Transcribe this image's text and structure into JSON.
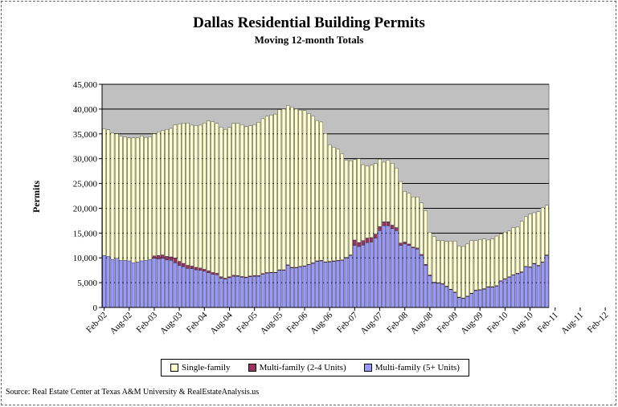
{
  "chart_data": {
    "type": "bar",
    "stacked": true,
    "title": "Dallas Residential Building Permits",
    "subtitle": "Moving 12-month Totals",
    "ylabel": "Permits",
    "xlabel": "",
    "ylim": [
      0,
      45000
    ],
    "y_ticks": [
      "0",
      "5,000",
      "10,000",
      "15,000",
      "20,000",
      "25,000",
      "30,000",
      "35,000",
      "40,000",
      "45,000"
    ],
    "x_tick_labels": [
      "Feb-02",
      "Aug-02",
      "Feb-03",
      "Aug-03",
      "Feb-04",
      "Aug-04",
      "Feb-05",
      "Aug-05",
      "Feb-06",
      "Aug-06",
      "Feb-07",
      "Aug-07",
      "Feb-08",
      "Aug-08",
      "Feb-09",
      "Aug-09",
      "Feb-10",
      "Aug-10",
      "Feb-11",
      "Aug-11",
      "Feb-12"
    ],
    "legend_placement": "bottom",
    "grid": true,
    "colors": {
      "single_family": "#FFFFCC",
      "multi_2_4": "#993366",
      "multi_5plus": "#9999FF",
      "plot_background": "#C0C0C0"
    },
    "start_period": "Feb-02",
    "series": [
      {
        "name": "Multi-family (5+ Units)",
        "values": [
          10500,
          10300,
          9700,
          9900,
          9500,
          9500,
          9400,
          9000,
          9200,
          9400,
          9500,
          9700,
          9900,
          9800,
          9900,
          9600,
          9500,
          9000,
          8500,
          8200,
          7900,
          7800,
          7600,
          7500,
          7300,
          7000,
          6700,
          6600,
          5900,
          5700,
          6000,
          6300,
          6300,
          6100,
          6000,
          6200,
          6300,
          6300,
          6700,
          6900,
          7000,
          7000,
          7500,
          7500,
          8500,
          8000,
          8000,
          8200,
          8300,
          8600,
          8900,
          9300,
          9400,
          9100,
          9200,
          9300,
          9400,
          9500,
          10000,
          10500,
          12500,
          12300,
          12600,
          13100,
          13200,
          14000,
          15500,
          16500,
          16500,
          15900,
          15500,
          12500,
          12800,
          12500,
          12000,
          11800,
          10500,
          8500,
          6400,
          5000,
          4900,
          4700,
          4200,
          3600,
          3000,
          2000,
          1800,
          2200,
          2800,
          3400,
          3500,
          3700,
          4100,
          4100,
          4300,
          5300,
          5700,
          6100,
          6500,
          6800,
          7100,
          8200,
          8100,
          8800,
          8400,
          9100,
          10500
        ]
      },
      {
        "name": "Multi-family (2-4 Units)",
        "values": [
          0,
          0,
          0,
          0,
          0,
          0,
          0,
          0,
          0,
          0,
          0,
          0,
          500,
          700,
          700,
          700,
          700,
          1000,
          800,
          700,
          600,
          550,
          500,
          450,
          400,
          400,
          350,
          300,
          300,
          200,
          200,
          200,
          150,
          150,
          150,
          150,
          150,
          150,
          150,
          150,
          100,
          100,
          100,
          100,
          100,
          100,
          100,
          100,
          100,
          100,
          100,
          100,
          100,
          100,
          100,
          100,
          100,
          100,
          100,
          100,
          1100,
          800,
          900,
          900,
          900,
          800,
          800,
          800,
          800,
          700,
          600,
          500,
          400,
          300,
          200,
          200,
          200,
          200,
          150,
          100,
          100,
          100,
          100,
          100,
          100,
          100,
          100,
          100,
          100,
          100,
          100,
          100,
          100,
          100,
          100,
          100,
          100,
          100,
          100,
          100,
          100,
          100,
          100,
          100,
          100,
          100,
          100
        ]
      },
      {
        "name": "Single-family",
        "values": [
          25500,
          25500,
          25500,
          25100,
          25000,
          24900,
          24800,
          25200,
          25000,
          25200,
          24800,
          24700,
          24600,
          24900,
          25100,
          25600,
          25900,
          26800,
          27700,
          28300,
          28700,
          28400,
          28600,
          28800,
          29500,
          30200,
          30400,
          30200,
          30200,
          30000,
          30100,
          30600,
          30700,
          30600,
          30300,
          30300,
          30400,
          30900,
          31200,
          31500,
          31700,
          31900,
          32300,
          32400,
          32100,
          32300,
          31900,
          31500,
          31300,
          30400,
          29600,
          28300,
          27900,
          25900,
          23500,
          22900,
          22400,
          21400,
          19600,
          19000,
          16200,
          16900,
          15300,
          14500,
          14600,
          14200,
          13600,
          12000,
          12400,
          12500,
          12000,
          12400,
          10200,
          10200,
          10100,
          10300,
          10400,
          10800,
          8600,
          9200,
          8500,
          8700,
          9000,
          9700,
          10300,
          10300,
          10400,
          10500,
          10600,
          10000,
          10100,
          10000,
          9400,
          9600,
          10000,
          9400,
          9400,
          9200,
          9500,
          9300,
          10200,
          10000,
          10600,
          10200,
          10800,
          10900,
          10000
        ]
      }
    ]
  },
  "legend": {
    "single": "Single-family",
    "multi24": "Multi-family (2-4 Units)",
    "multi5": "Multi-family (5+ Units)"
  },
  "source_text": "Source: Real Estate Center at Texas A&M University & RealEstateAnalysis.us"
}
